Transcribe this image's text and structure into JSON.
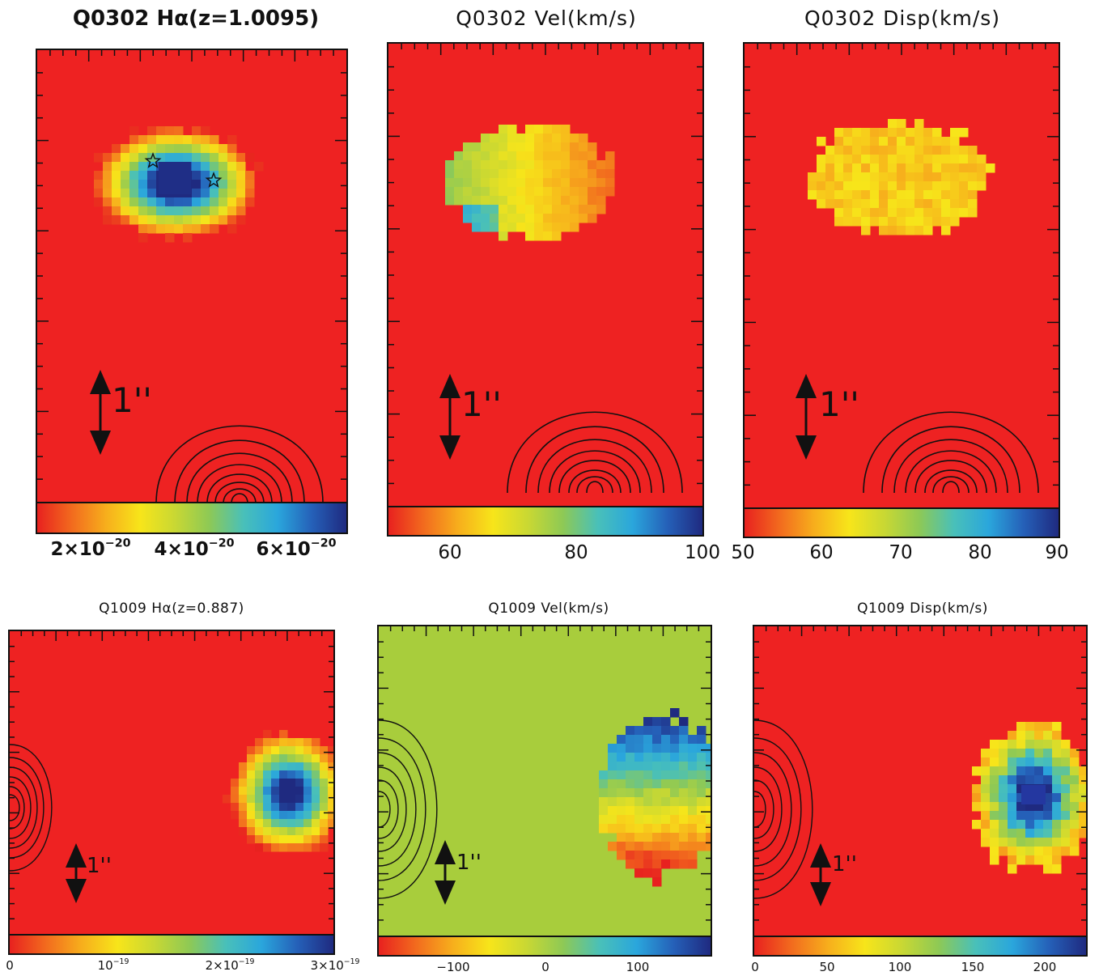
{
  "chart_data": [
    {
      "type": "heatmap",
      "title": "Q0302 Hα(z=1.0095)",
      "colorbar": {
        "ticks": [
          "2×10^-20",
          "4×10^-20",
          "6×10^-20"
        ]
      },
      "scale_label": "1''",
      "markers": [
        "star",
        "star"
      ]
    },
    {
      "type": "heatmap",
      "title": "Q0302 Vel(km/s)",
      "colorbar": {
        "range": [
          50,
          100
        ],
        "ticks": [
          "60",
          "80",
          "100"
        ]
      },
      "scale_label": "1''"
    },
    {
      "type": "heatmap",
      "title": "Q0302 Disp(km/s)",
      "colorbar": {
        "range": [
          50,
          90
        ],
        "ticks": [
          "50",
          "60",
          "70",
          "80",
          "90"
        ]
      },
      "scale_label": "1''"
    },
    {
      "type": "heatmap",
      "title": "Q1009 Hα(z=0.887)",
      "colorbar": {
        "range": [
          0,
          3e-19
        ],
        "ticks": [
          "0",
          "10^-19",
          "2×10^-19",
          "3×10^-19"
        ]
      },
      "scale_label": "1''"
    },
    {
      "type": "heatmap",
      "title": "Q1009 Vel(km/s)",
      "colorbar": {
        "ticks": [
          "-100",
          "0",
          "100"
        ]
      },
      "scale_label": "1''"
    },
    {
      "type": "heatmap",
      "title": "Q1009 Disp(km/s)",
      "colorbar": {
        "ticks": [
          "0",
          "50",
          "100",
          "150",
          "200"
        ]
      },
      "scale_label": "1''"
    }
  ],
  "colors": {
    "background": "#ee2222",
    "vel_background": "#a8cd3c",
    "colormap": [
      "#e8211f",
      "#f26a1e",
      "#f7ae1c",
      "#f7e51a",
      "#c9d833",
      "#8ec955",
      "#49c0b9",
      "#2aa6dc",
      "#2560b8",
      "#1f2a80"
    ],
    "contour": "#111111"
  }
}
